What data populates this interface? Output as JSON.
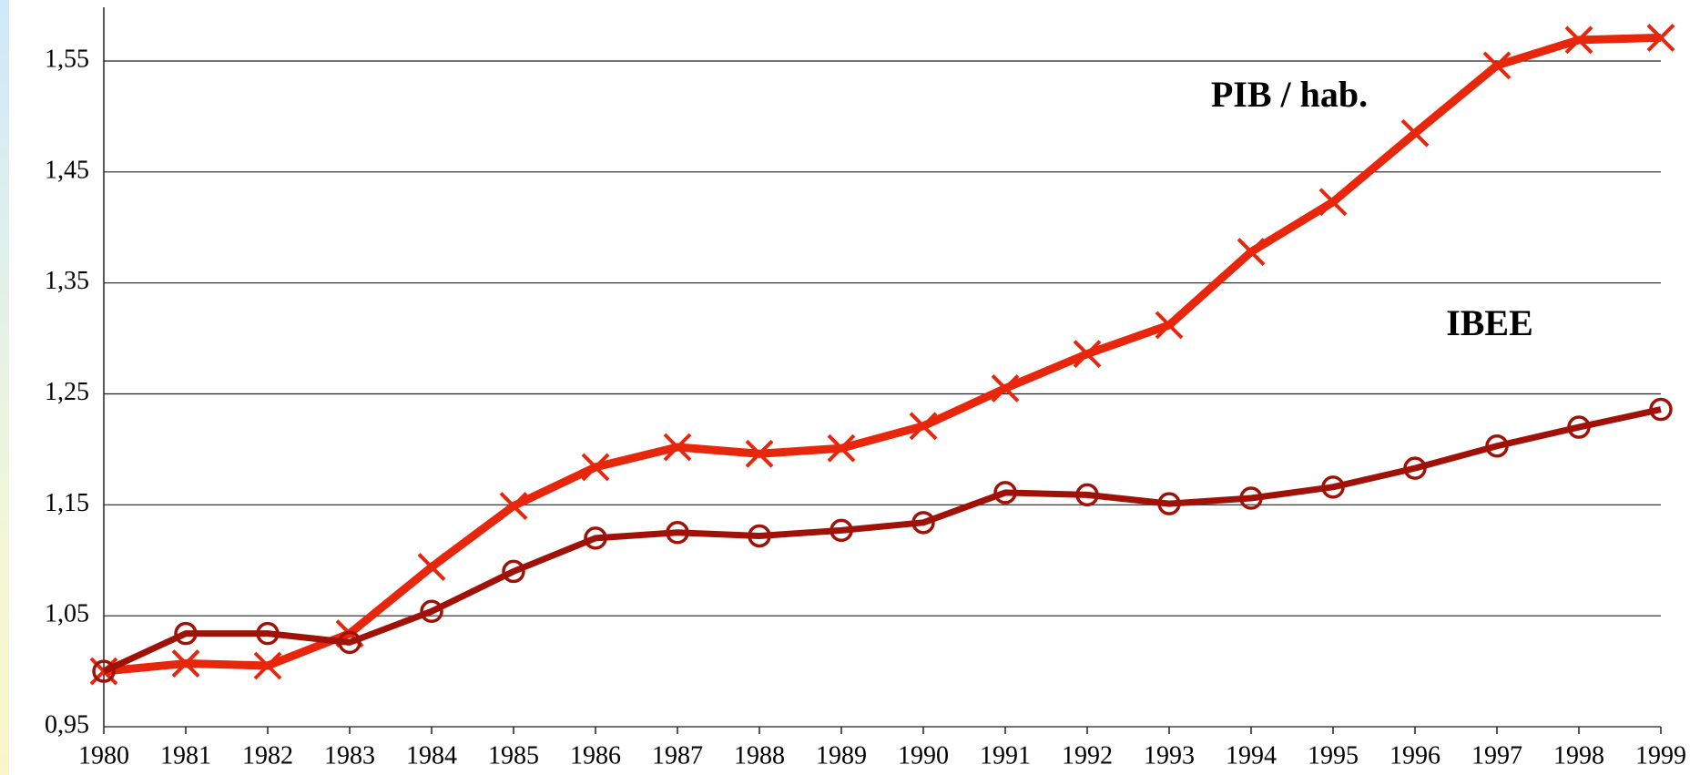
{
  "chart_data": {
    "type": "line",
    "categories": [
      "1980",
      "1981",
      "1982",
      "1983",
      "1984",
      "1985",
      "1986",
      "1987",
      "1988",
      "1989",
      "1990",
      "1991",
      "1992",
      "1993",
      "1994",
      "1995",
      "1996",
      "1997",
      "1998",
      "1999"
    ],
    "series": [
      {
        "name": "PIB / hab.",
        "color": "#e8260c",
        "marker": "x",
        "values": [
          1.0,
          1.007,
          1.005,
          1.034,
          1.094,
          1.149,
          1.184,
          1.202,
          1.196,
          1.201,
          1.221,
          1.255,
          1.286,
          1.312,
          1.378,
          1.423,
          1.485,
          1.546,
          1.569,
          1.571
        ]
      },
      {
        "name": "IBEE",
        "color": "#a01208",
        "marker": "circle",
        "values": [
          1.0,
          1.034,
          1.034,
          1.026,
          1.054,
          1.09,
          1.12,
          1.125,
          1.122,
          1.127,
          1.134,
          1.161,
          1.159,
          1.151,
          1.156,
          1.166,
          1.183,
          1.203,
          1.22,
          1.236
        ]
      }
    ],
    "ylim": [
      0.95,
      1.55
    ],
    "yticks": [
      {
        "value": 0.95,
        "label": "0,95"
      },
      {
        "value": 1.05,
        "label": "1,05"
      },
      {
        "value": 1.15,
        "label": "1,15"
      },
      {
        "value": 1.25,
        "label": "1,25"
      },
      {
        "value": 1.35,
        "label": "1,35"
      },
      {
        "value": 1.45,
        "label": "1,45"
      },
      {
        "value": 1.55,
        "label": "1,55"
      }
    ],
    "grid": true
  }
}
